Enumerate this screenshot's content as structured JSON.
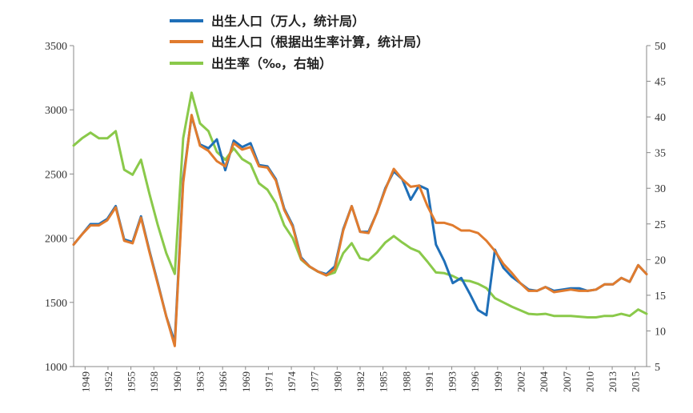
{
  "chart_data": {
    "type": "line",
    "y_left": {
      "min": 1000,
      "max": 3500,
      "ticks": [
        1000,
        1500,
        2000,
        2500,
        3000,
        3500
      ]
    },
    "y_right": {
      "min": 5,
      "max": 50,
      "ticks": [
        5,
        10,
        15,
        20,
        25,
        30,
        35,
        40,
        45,
        50
      ]
    },
    "x": {
      "min": 1949,
      "max": 2017,
      "tick_labels": [
        "1949",
        "1952",
        "1955",
        "1958",
        "1960",
        "1963",
        "1966",
        "1969",
        "1971",
        "1974",
        "1977",
        "1980",
        "1982",
        "1985",
        "1988",
        "1991",
        "1993",
        "1996",
        "1999",
        "2002",
        "2004",
        "2007",
        "2010",
        "2013",
        "2015"
      ]
    },
    "legend_position": "top",
    "grid": false,
    "series": [
      {
        "name": "出生人口（万人，统计局）",
        "axis": "left",
        "color": "#1f6fb8",
        "points": [
          [
            1949,
            1950
          ],
          [
            1950,
            2030
          ],
          [
            1951,
            2110
          ],
          [
            1952,
            2110
          ],
          [
            1953,
            2150
          ],
          [
            1954,
            2250
          ],
          [
            1955,
            1990
          ],
          [
            1956,
            1970
          ],
          [
            1957,
            2170
          ],
          [
            1958,
            1900
          ],
          [
            1959,
            1650
          ],
          [
            1960,
            1390
          ],
          [
            1961,
            1190
          ],
          [
            1962,
            2460
          ],
          [
            1963,
            2950
          ],
          [
            1964,
            2730
          ],
          [
            1965,
            2700
          ],
          [
            1966,
            2770
          ],
          [
            1967,
            2530
          ],
          [
            1968,
            2760
          ],
          [
            1969,
            2710
          ],
          [
            1970,
            2740
          ],
          [
            1971,
            2570
          ],
          [
            1972,
            2560
          ],
          [
            1973,
            2460
          ],
          [
            1974,
            2230
          ],
          [
            1975,
            2100
          ],
          [
            1976,
            1850
          ],
          [
            1977,
            1780
          ],
          [
            1978,
            1740
          ],
          [
            1979,
            1720
          ],
          [
            1980,
            1780
          ],
          [
            1981,
            2070
          ],
          [
            1982,
            2250
          ],
          [
            1983,
            2050
          ],
          [
            1984,
            2050
          ],
          [
            1985,
            2200
          ],
          [
            1986,
            2390
          ],
          [
            1987,
            2520
          ],
          [
            1988,
            2460
          ],
          [
            1989,
            2300
          ],
          [
            1990,
            2410
          ],
          [
            1991,
            2380
          ],
          [
            1992,
            1950
          ],
          [
            1993,
            1820
          ],
          [
            1994,
            1650
          ],
          [
            1995,
            1690
          ],
          [
            1996,
            1570
          ],
          [
            1997,
            1440
          ],
          [
            1998,
            1400
          ],
          [
            1999,
            1910
          ],
          [
            2000,
            1770
          ],
          [
            2001,
            1700
          ],
          [
            2002,
            1650
          ],
          [
            2003,
            1600
          ],
          [
            2004,
            1590
          ],
          [
            2005,
            1620
          ],
          [
            2006,
            1590
          ],
          [
            2007,
            1600
          ],
          [
            2008,
            1610
          ],
          [
            2009,
            1610
          ],
          [
            2010,
            1590
          ],
          [
            2011,
            1600
          ],
          [
            2012,
            1640
          ],
          [
            2013,
            1640
          ],
          [
            2014,
            1690
          ],
          [
            2015,
            1660
          ],
          [
            2016,
            1790
          ],
          [
            2017,
            1720
          ]
        ]
      },
      {
        "name": "出生人口（根据出生率计算，统计局）",
        "axis": "left",
        "color": "#e07b2e",
        "points": [
          [
            1949,
            1950
          ],
          [
            1950,
            2030
          ],
          [
            1951,
            2100
          ],
          [
            1952,
            2100
          ],
          [
            1953,
            2140
          ],
          [
            1954,
            2240
          ],
          [
            1955,
            1980
          ],
          [
            1956,
            1960
          ],
          [
            1957,
            2160
          ],
          [
            1958,
            1890
          ],
          [
            1959,
            1640
          ],
          [
            1960,
            1390
          ],
          [
            1961,
            1160
          ],
          [
            1962,
            2430
          ],
          [
            1963,
            2960
          ],
          [
            1964,
            2720
          ],
          [
            1965,
            2680
          ],
          [
            1966,
            2600
          ],
          [
            1967,
            2560
          ],
          [
            1968,
            2740
          ],
          [
            1969,
            2690
          ],
          [
            1970,
            2710
          ],
          [
            1971,
            2560
          ],
          [
            1972,
            2550
          ],
          [
            1973,
            2450
          ],
          [
            1974,
            2220
          ],
          [
            1975,
            2090
          ],
          [
            1976,
            1840
          ],
          [
            1977,
            1780
          ],
          [
            1978,
            1740
          ],
          [
            1979,
            1710
          ],
          [
            1980,
            1760
          ],
          [
            1981,
            2060
          ],
          [
            1982,
            2250
          ],
          [
            1983,
            2050
          ],
          [
            1984,
            2040
          ],
          [
            1985,
            2200
          ],
          [
            1986,
            2380
          ],
          [
            1987,
            2540
          ],
          [
            1988,
            2460
          ],
          [
            1989,
            2400
          ],
          [
            1990,
            2410
          ],
          [
            1991,
            2250
          ],
          [
            1992,
            2120
          ],
          [
            1993,
            2120
          ],
          [
            1994,
            2100
          ],
          [
            1995,
            2060
          ],
          [
            1996,
            2060
          ],
          [
            1997,
            2040
          ],
          [
            1998,
            1980
          ],
          [
            1999,
            1900
          ],
          [
            2000,
            1800
          ],
          [
            2001,
            1730
          ],
          [
            2002,
            1650
          ],
          [
            2003,
            1590
          ],
          [
            2004,
            1590
          ],
          [
            2005,
            1620
          ],
          [
            2006,
            1580
          ],
          [
            2007,
            1590
          ],
          [
            2008,
            1600
          ],
          [
            2009,
            1590
          ],
          [
            2010,
            1590
          ],
          [
            2011,
            1600
          ],
          [
            2012,
            1640
          ],
          [
            2013,
            1640
          ],
          [
            2014,
            1690
          ],
          [
            2015,
            1660
          ],
          [
            2016,
            1790
          ],
          [
            2017,
            1720
          ]
        ]
      },
      {
        "name": "出生率（‰，右轴）",
        "axis": "right",
        "color": "#8ac94a",
        "points": [
          [
            1949,
            36.0
          ],
          [
            1950,
            37.0
          ],
          [
            1951,
            37.8
          ],
          [
            1952,
            37.0
          ],
          [
            1953,
            37.0
          ],
          [
            1954,
            38.0
          ],
          [
            1955,
            32.6
          ],
          [
            1956,
            31.9
          ],
          [
            1957,
            34.0
          ],
          [
            1958,
            29.2
          ],
          [
            1959,
            24.8
          ],
          [
            1960,
            20.9
          ],
          [
            1961,
            18.0
          ],
          [
            1962,
            37.0
          ],
          [
            1963,
            43.4
          ],
          [
            1964,
            39.1
          ],
          [
            1965,
            38.0
          ],
          [
            1966,
            35.1
          ],
          [
            1967,
            34.0
          ],
          [
            1968,
            35.6
          ],
          [
            1969,
            34.1
          ],
          [
            1970,
            33.4
          ],
          [
            1971,
            30.7
          ],
          [
            1972,
            29.8
          ],
          [
            1973,
            27.9
          ],
          [
            1974,
            24.8
          ],
          [
            1975,
            23.0
          ],
          [
            1976,
            20.0
          ],
          [
            1977,
            19.0
          ],
          [
            1978,
            18.3
          ],
          [
            1979,
            17.8
          ],
          [
            1980,
            18.2
          ],
          [
            1981,
            20.9
          ],
          [
            1982,
            22.3
          ],
          [
            1983,
            20.2
          ],
          [
            1984,
            19.9
          ],
          [
            1985,
            21.0
          ],
          [
            1986,
            22.4
          ],
          [
            1987,
            23.3
          ],
          [
            1988,
            22.4
          ],
          [
            1989,
            21.6
          ],
          [
            1990,
            21.1
          ],
          [
            1991,
            19.7
          ],
          [
            1992,
            18.2
          ],
          [
            1993,
            18.1
          ],
          [
            1994,
            17.7
          ],
          [
            1995,
            17.1
          ],
          [
            1996,
            17.0
          ],
          [
            1997,
            16.6
          ],
          [
            1998,
            16.0
          ],
          [
            1999,
            14.6
          ],
          [
            2000,
            14.0
          ],
          [
            2001,
            13.4
          ],
          [
            2002,
            12.9
          ],
          [
            2003,
            12.4
          ],
          [
            2004,
            12.3
          ],
          [
            2005,
            12.4
          ],
          [
            2006,
            12.1
          ],
          [
            2007,
            12.1
          ],
          [
            2008,
            12.1
          ],
          [
            2009,
            12.0
          ],
          [
            2010,
            11.9
          ],
          [
            2011,
            11.9
          ],
          [
            2012,
            12.1
          ],
          [
            2013,
            12.1
          ],
          [
            2014,
            12.4
          ],
          [
            2015,
            12.1
          ],
          [
            2016,
            13.0
          ],
          [
            2017,
            12.4
          ]
        ]
      }
    ]
  }
}
